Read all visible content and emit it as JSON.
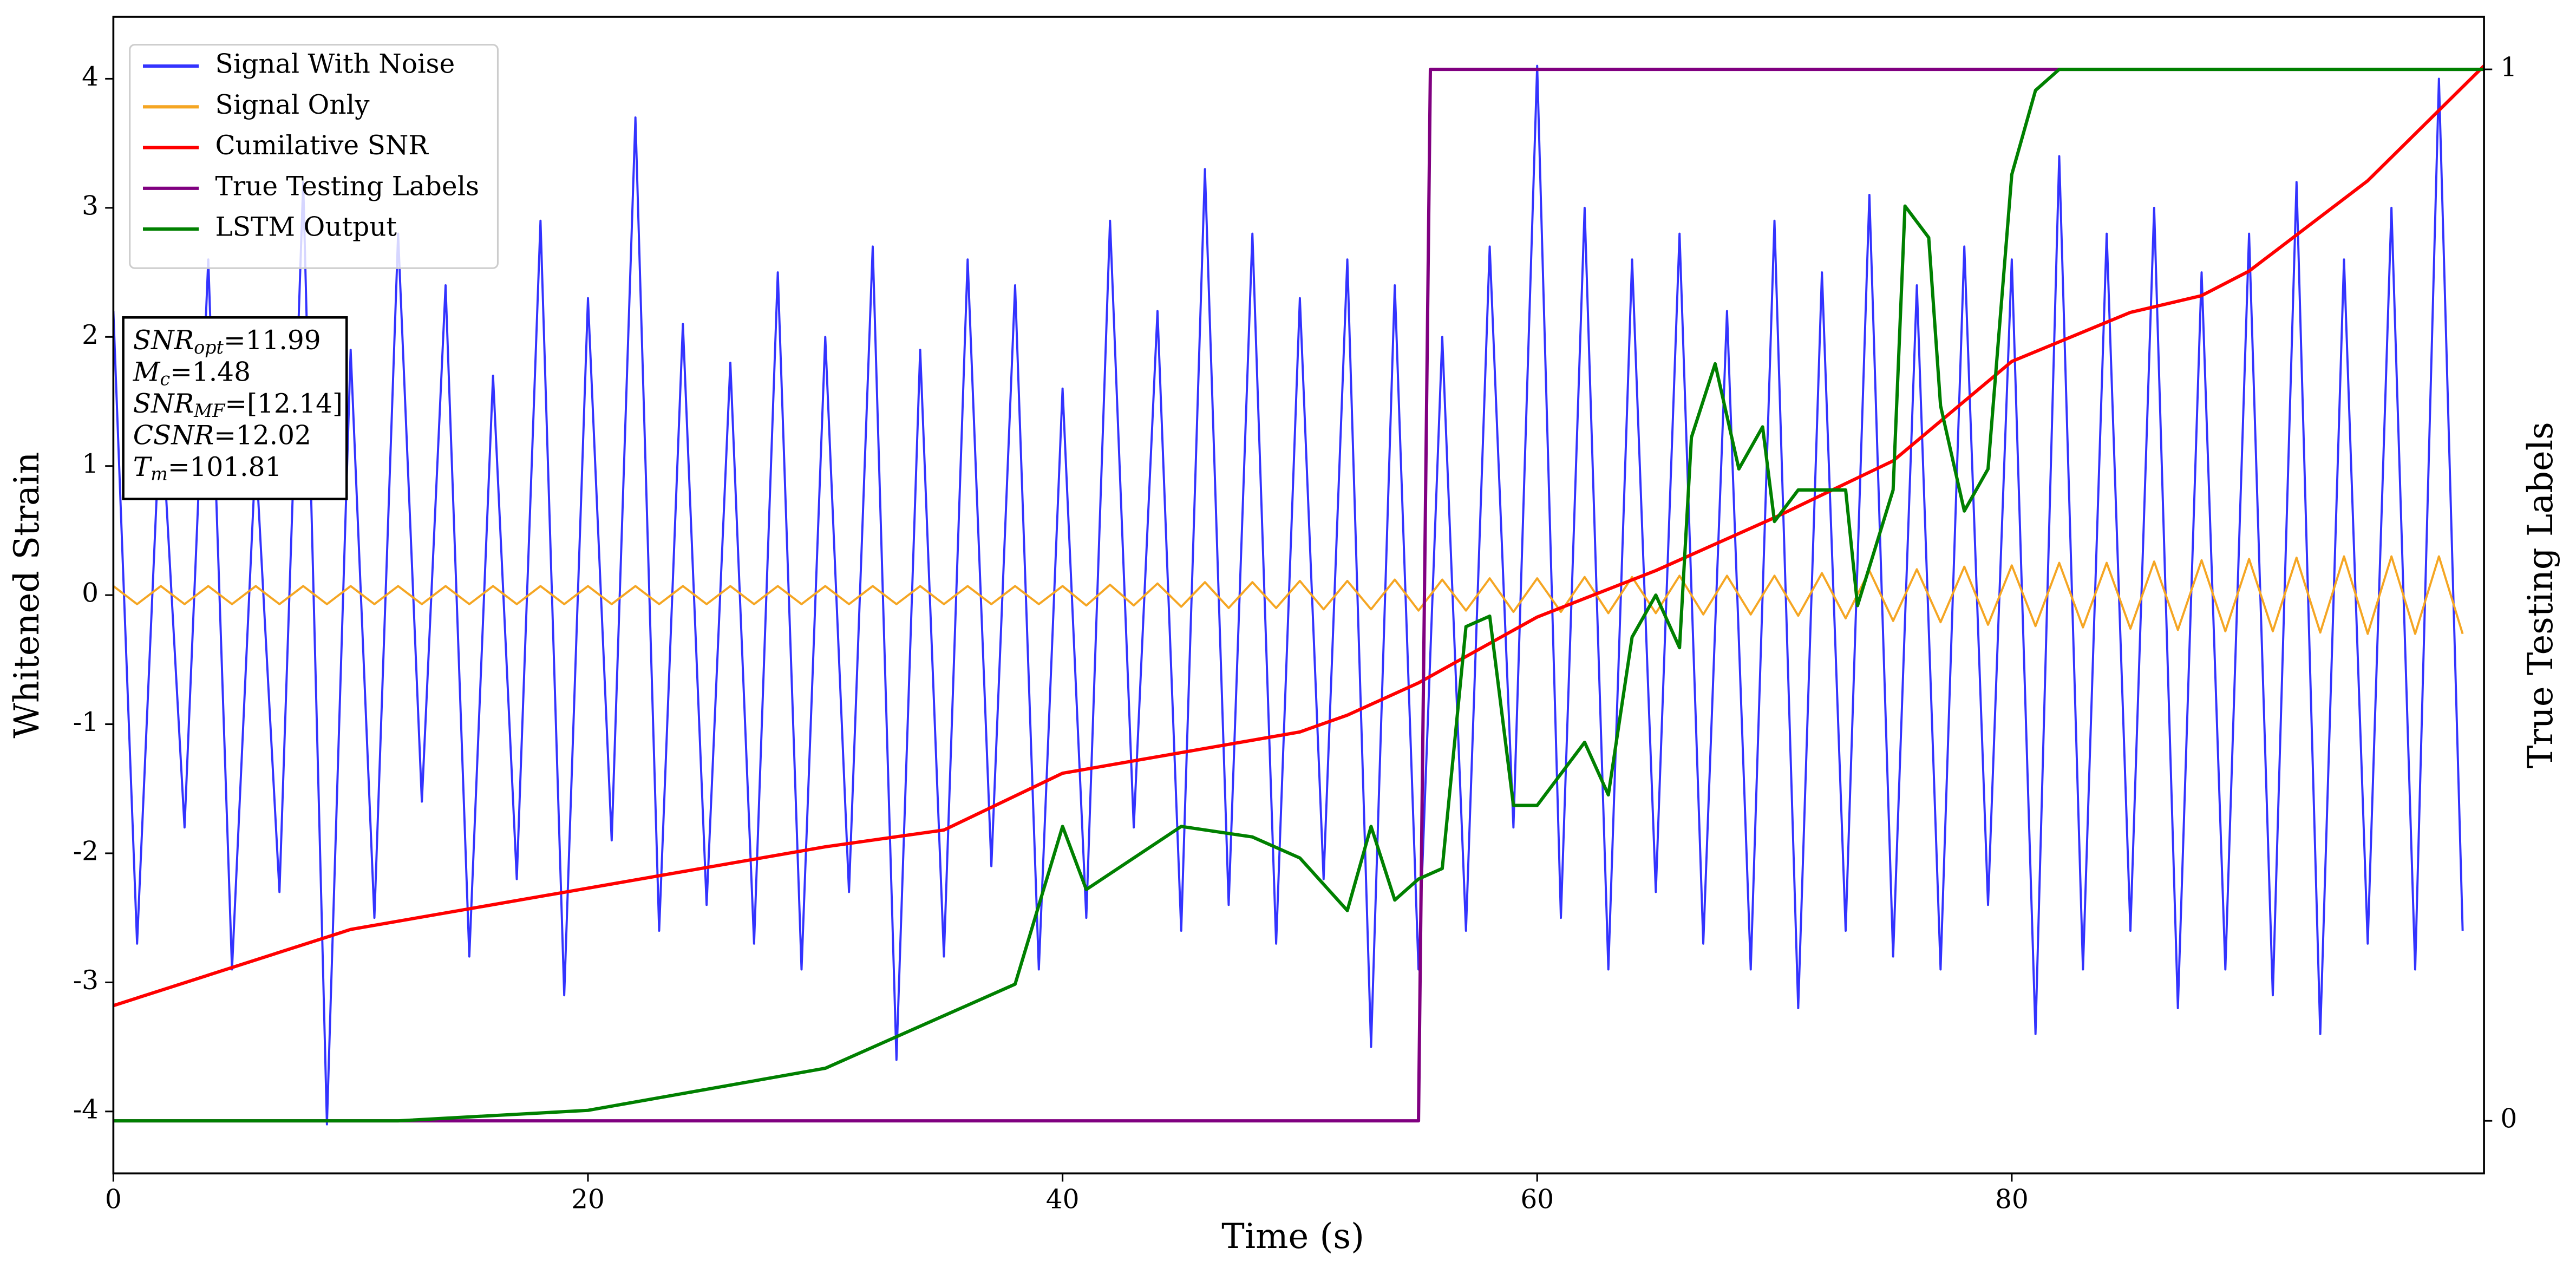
{
  "chart_data": {
    "type": "line",
    "xlabel": "Time (s)",
    "ylabel": "Whitened Strain",
    "y2label": "True Testing Labels",
    "xlim": [
      0,
      99.9
    ],
    "xticks": [
      0,
      20,
      40,
      60,
      80
    ],
    "ylim": [
      -4.48,
      4.48
    ],
    "yticks": [
      -4,
      -3,
      -2,
      -1,
      0,
      1,
      2,
      3,
      4
    ],
    "y2lim": [
      -0.05,
      1.05
    ],
    "y2ticks": [
      0,
      1
    ],
    "legend": "upper left",
    "x": [
      0,
      1,
      2,
      3,
      4,
      5,
      6,
      7,
      8,
      9,
      10,
      11,
      12,
      13,
      14,
      15,
      16,
      17,
      18,
      19,
      20,
      21,
      22,
      23,
      24,
      25,
      26,
      27,
      28,
      29,
      30,
      31,
      32,
      33,
      34,
      35,
      36,
      37,
      38,
      39,
      40,
      41,
      42,
      43,
      44,
      45,
      46,
      47,
      48,
      49,
      50,
      51,
      52,
      53,
      54,
      55,
      56,
      57,
      58,
      59,
      60,
      61,
      62,
      63,
      64,
      65,
      66,
      67,
      68,
      69,
      70,
      71,
      72,
      73,
      74,
      75,
      76,
      77,
      78,
      79,
      80,
      81,
      82,
      83,
      84,
      85,
      86,
      87,
      88,
      89,
      90,
      91,
      92,
      93,
      94,
      95,
      96,
      97,
      98,
      99
    ],
    "series": [
      {
        "name": "Signal With Noise",
        "color": "#3333ff",
        "values": [
          2.2,
          -2.7,
          1.5,
          -1.8,
          2.6,
          -2.9,
          1.1,
          -2.3,
          3.2,
          -4.1,
          1.9,
          -2.5,
          2.8,
          -1.6,
          2.4,
          -2.8,
          1.7,
          -2.2,
          2.9,
          -3.1,
          2.3,
          -1.9,
          3.7,
          -2.6,
          2.1,
          -2.4,
          1.8,
          -2.7,
          2.5,
          -2.9,
          2.0,
          -2.3,
          2.7,
          -3.6,
          1.9,
          -2.8,
          2.6,
          -2.1,
          2.4,
          -2.9,
          1.6,
          -2.5,
          2.9,
          -1.8,
          2.2,
          -2.6,
          3.3,
          -2.4,
          2.8,
          -2.7,
          2.3,
          -2.2,
          2.6,
          -3.5,
          2.4,
          -2.9,
          2.0,
          -2.6,
          2.7,
          -1.8,
          4.1,
          -2.5,
          3.0,
          -2.9,
          2.6,
          -2.3,
          2.8,
          -2.7,
          2.2,
          -2.9,
          2.9,
          -3.2,
          2.5,
          -2.6,
          3.1,
          -2.8,
          2.4,
          -2.9,
          2.7,
          -2.4,
          2.6,
          -3.4,
          3.4,
          -2.9,
          2.8,
          -2.6,
          3.0,
          -3.2,
          2.5,
          -2.9,
          2.8,
          -3.1,
          3.2,
          -3.4,
          2.6,
          -2.7,
          3.0,
          -2.9,
          4.0,
          -2.6
        ]
      },
      {
        "name": "Signal Only",
        "color": "#f5a623",
        "values": [
          0.07,
          -0.07,
          0.07,
          -0.07,
          0.07,
          -0.07,
          0.07,
          -0.07,
          0.07,
          -0.07,
          0.07,
          -0.07,
          0.07,
          -0.07,
          0.07,
          -0.07,
          0.07,
          -0.07,
          0.07,
          -0.07,
          0.07,
          -0.07,
          0.07,
          -0.07,
          0.07,
          -0.07,
          0.07,
          -0.07,
          0.07,
          -0.07,
          0.07,
          -0.07,
          0.07,
          -0.07,
          0.07,
          -0.07,
          0.07,
          -0.07,
          0.07,
          -0.07,
          0.07,
          -0.08,
          0.08,
          -0.08,
          0.09,
          -0.09,
          0.1,
          -0.1,
          0.1,
          -0.1,
          0.11,
          -0.11,
          0.11,
          -0.11,
          0.12,
          -0.12,
          0.12,
          -0.12,
          0.13,
          -0.13,
          0.13,
          -0.13,
          0.14,
          -0.14,
          0.14,
          -0.14,
          0.15,
          -0.15,
          0.15,
          -0.15,
          0.15,
          -0.16,
          0.17,
          -0.18,
          0.19,
          -0.2,
          0.2,
          -0.21,
          0.22,
          -0.23,
          0.23,
          -0.24,
          0.25,
          -0.25,
          0.25,
          -0.26,
          0.26,
          -0.27,
          0.27,
          -0.28,
          0.28,
          -0.28,
          0.29,
          -0.29,
          0.3,
          -0.3,
          0.3,
          -0.3,
          0.3,
          -0.3
        ]
      },
      {
        "name": "Cumilative SNR",
        "color": "#ff0000",
        "x": [
          0,
          10,
          20,
          30,
          35,
          40,
          45,
          50,
          52,
          55,
          60,
          65,
          70,
          75,
          80,
          85,
          88,
          90,
          95,
          99.9
        ],
        "values": [
          -3.18,
          -2.59,
          -2.27,
          -1.95,
          -1.82,
          -1.38,
          -1.22,
          -1.06,
          -0.93,
          -0.68,
          -0.17,
          0.19,
          0.6,
          1.04,
          1.81,
          2.19,
          2.32,
          2.51,
          3.21,
          4.1
        ]
      },
      {
        "name": "True Testing Labels",
        "color": "#800080",
        "axis": "y2",
        "x": [
          0,
          55,
          55.5,
          99.9
        ],
        "values": [
          0,
          0,
          1,
          1
        ]
      },
      {
        "name": "LSTM Output",
        "color": "#008000",
        "axis": "y2",
        "x": [
          0,
          12,
          20,
          30,
          35,
          38,
          40,
          41,
          45,
          48,
          50,
          52,
          53,
          54,
          55,
          56,
          57,
          58,
          59,
          60,
          62,
          63,
          64,
          65,
          66,
          66.5,
          67.5,
          68.5,
          69.5,
          70,
          71,
          73,
          73.5,
          75,
          75.5,
          76.5,
          77,
          78,
          79,
          80,
          81,
          82,
          85,
          99.9
        ],
        "values": [
          0,
          0,
          0.01,
          0.05,
          0.1,
          0.13,
          0.28,
          0.22,
          0.28,
          0.27,
          0.25,
          0.2,
          0.28,
          0.21,
          0.23,
          0.24,
          0.47,
          0.48,
          0.3,
          0.3,
          0.36,
          0.31,
          0.46,
          0.5,
          0.45,
          0.65,
          0.72,
          0.62,
          0.66,
          0.57,
          0.6,
          0.6,
          0.49,
          0.6,
          0.87,
          0.84,
          0.68,
          0.58,
          0.62,
          0.9,
          0.98,
          1.0,
          1.0,
          1.0
        ]
      }
    ],
    "annotation": [
      {
        "main": "SNR",
        "sub": "opt",
        "value": "=11.99"
      },
      {
        "main": "M",
        "sub": "c",
        "value": "=1.48"
      },
      {
        "main": "SNR",
        "sub": "MF",
        "value": "=[12.14]"
      },
      {
        "main": "CSNR",
        "value": "=12.02"
      },
      {
        "main": "T",
        "sub": "m",
        "value": "=101.81"
      }
    ]
  }
}
